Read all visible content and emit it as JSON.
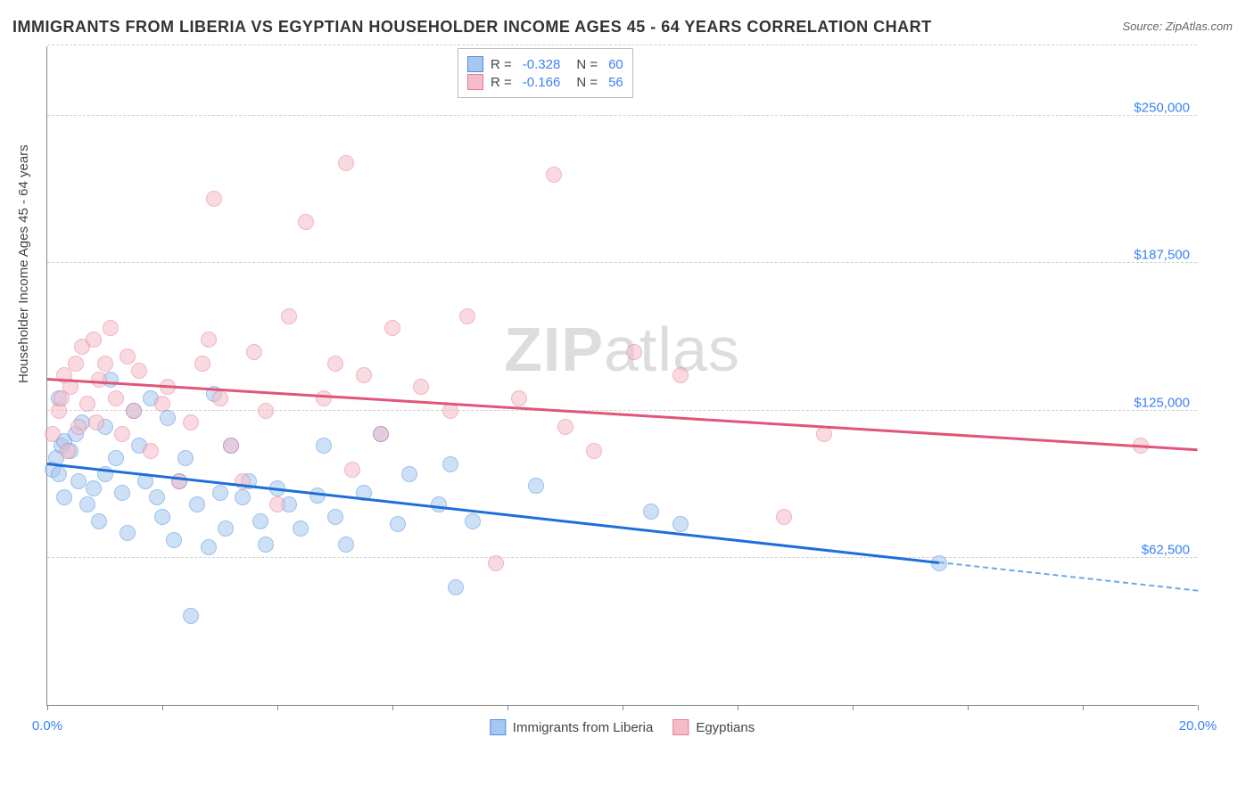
{
  "title": "IMMIGRANTS FROM LIBERIA VS EGYPTIAN HOUSEHOLDER INCOME AGES 45 - 64 YEARS CORRELATION CHART",
  "source": "Source: ZipAtlas.com",
  "watermark_a": "ZIP",
  "watermark_b": "atlas",
  "y_axis_label": "Householder Income Ages 45 - 64 years",
  "chart": {
    "type": "scatter",
    "xlim": [
      0,
      20
    ],
    "ylim": [
      0,
      280000
    ],
    "x_ticks": [
      0,
      2,
      4,
      6,
      8,
      10,
      12,
      14,
      16,
      18,
      20
    ],
    "x_tick_labels": {
      "0": "0.0%",
      "20": "20.0%"
    },
    "y_gridlines": [
      62500,
      125000,
      187500,
      250000,
      280000
    ],
    "y_tick_labels": {
      "62500": "$62,500",
      "125000": "$125,000",
      "187500": "$187,500",
      "250000": "$250,000"
    },
    "grid_color": "#d0d0d0",
    "axis_color": "#888888",
    "tick_label_color": "#3b82f6",
    "marker_radius": 9,
    "marker_opacity": 0.55,
    "series": [
      {
        "name": "Immigrants from Liberia",
        "color_fill": "#a7c7f0",
        "color_stroke": "#4b8fe0",
        "R": "-0.328",
        "N": "60",
        "trend": {
          "x0": 0,
          "y0": 102000,
          "x1": 15.5,
          "y1": 60000,
          "color": "#1e6fd9",
          "width": 2.8
        },
        "trend_extrapolate": {
          "x0": 15.5,
          "y0": 60000,
          "x1": 20,
          "y1": 48000,
          "color": "#6fa8e8"
        },
        "points": [
          [
            0.1,
            100000
          ],
          [
            0.15,
            105000
          ],
          [
            0.2,
            98000
          ],
          [
            0.2,
            130000
          ],
          [
            0.25,
            110000
          ],
          [
            0.3,
            112000
          ],
          [
            0.3,
            88000
          ],
          [
            0.4,
            108000
          ],
          [
            0.5,
            115000
          ],
          [
            0.55,
            95000
          ],
          [
            0.6,
            120000
          ],
          [
            0.7,
            85000
          ],
          [
            0.8,
            92000
          ],
          [
            0.9,
            78000
          ],
          [
            1.0,
            118000
          ],
          [
            1.0,
            98000
          ],
          [
            1.1,
            138000
          ],
          [
            1.2,
            105000
          ],
          [
            1.3,
            90000
          ],
          [
            1.4,
            73000
          ],
          [
            1.5,
            125000
          ],
          [
            1.6,
            110000
          ],
          [
            1.7,
            95000
          ],
          [
            1.8,
            130000
          ],
          [
            1.9,
            88000
          ],
          [
            2.0,
            80000
          ],
          [
            2.1,
            122000
          ],
          [
            2.2,
            70000
          ],
          [
            2.3,
            95000
          ],
          [
            2.4,
            105000
          ],
          [
            2.5,
            38000
          ],
          [
            2.6,
            85000
          ],
          [
            2.8,
            67000
          ],
          [
            2.9,
            132000
          ],
          [
            3.0,
            90000
          ],
          [
            3.1,
            75000
          ],
          [
            3.2,
            110000
          ],
          [
            3.4,
            88000
          ],
          [
            3.5,
            95000
          ],
          [
            3.7,
            78000
          ],
          [
            3.8,
            68000
          ],
          [
            4.0,
            92000
          ],
          [
            4.2,
            85000
          ],
          [
            4.4,
            75000
          ],
          [
            4.7,
            89000
          ],
          [
            4.8,
            110000
          ],
          [
            5.0,
            80000
          ],
          [
            5.2,
            68000
          ],
          [
            5.5,
            90000
          ],
          [
            5.8,
            115000
          ],
          [
            6.1,
            77000
          ],
          [
            6.3,
            98000
          ],
          [
            6.8,
            85000
          ],
          [
            7.0,
            102000
          ],
          [
            7.1,
            50000
          ],
          [
            7.4,
            78000
          ],
          [
            8.5,
            93000
          ],
          [
            10.5,
            82000
          ],
          [
            11.0,
            77000
          ],
          [
            15.5,
            60000
          ]
        ]
      },
      {
        "name": "Egyptians",
        "color_fill": "#f5bdc9",
        "color_stroke": "#e77a94",
        "R": "-0.166",
        "N": "56",
        "trend": {
          "x0": 0,
          "y0": 138000,
          "x1": 20,
          "y1": 108000,
          "color": "#e05578",
          "width": 2.5
        },
        "points": [
          [
            0.1,
            115000
          ],
          [
            0.2,
            125000
          ],
          [
            0.25,
            130000
          ],
          [
            0.3,
            140000
          ],
          [
            0.35,
            108000
          ],
          [
            0.4,
            135000
          ],
          [
            0.5,
            145000
          ],
          [
            0.55,
            118000
          ],
          [
            0.6,
            152000
          ],
          [
            0.7,
            128000
          ],
          [
            0.8,
            155000
          ],
          [
            0.85,
            120000
          ],
          [
            0.9,
            138000
          ],
          [
            1.0,
            145000
          ],
          [
            1.1,
            160000
          ],
          [
            1.2,
            130000
          ],
          [
            1.3,
            115000
          ],
          [
            1.4,
            148000
          ],
          [
            1.5,
            125000
          ],
          [
            1.6,
            142000
          ],
          [
            1.8,
            108000
          ],
          [
            2.0,
            128000
          ],
          [
            2.1,
            135000
          ],
          [
            2.3,
            95000
          ],
          [
            2.5,
            120000
          ],
          [
            2.7,
            145000
          ],
          [
            2.8,
            155000
          ],
          [
            2.9,
            215000
          ],
          [
            3.0,
            130000
          ],
          [
            3.2,
            110000
          ],
          [
            3.4,
            95000
          ],
          [
            3.6,
            150000
          ],
          [
            3.8,
            125000
          ],
          [
            4.0,
            85000
          ],
          [
            4.2,
            165000
          ],
          [
            4.5,
            205000
          ],
          [
            4.8,
            130000
          ],
          [
            5.0,
            145000
          ],
          [
            5.2,
            230000
          ],
          [
            5.3,
            100000
          ],
          [
            5.5,
            140000
          ],
          [
            5.8,
            115000
          ],
          [
            6.0,
            160000
          ],
          [
            6.5,
            135000
          ],
          [
            7.0,
            125000
          ],
          [
            7.3,
            165000
          ],
          [
            7.8,
            60000
          ],
          [
            8.2,
            130000
          ],
          [
            8.8,
            225000
          ],
          [
            9.0,
            118000
          ],
          [
            9.5,
            108000
          ],
          [
            10.2,
            150000
          ],
          [
            11.0,
            140000
          ],
          [
            12.8,
            80000
          ],
          [
            13.5,
            115000
          ],
          [
            19.0,
            110000
          ]
        ]
      }
    ],
    "legend_top": {
      "r_label": "R =",
      "n_label": "N ="
    }
  }
}
